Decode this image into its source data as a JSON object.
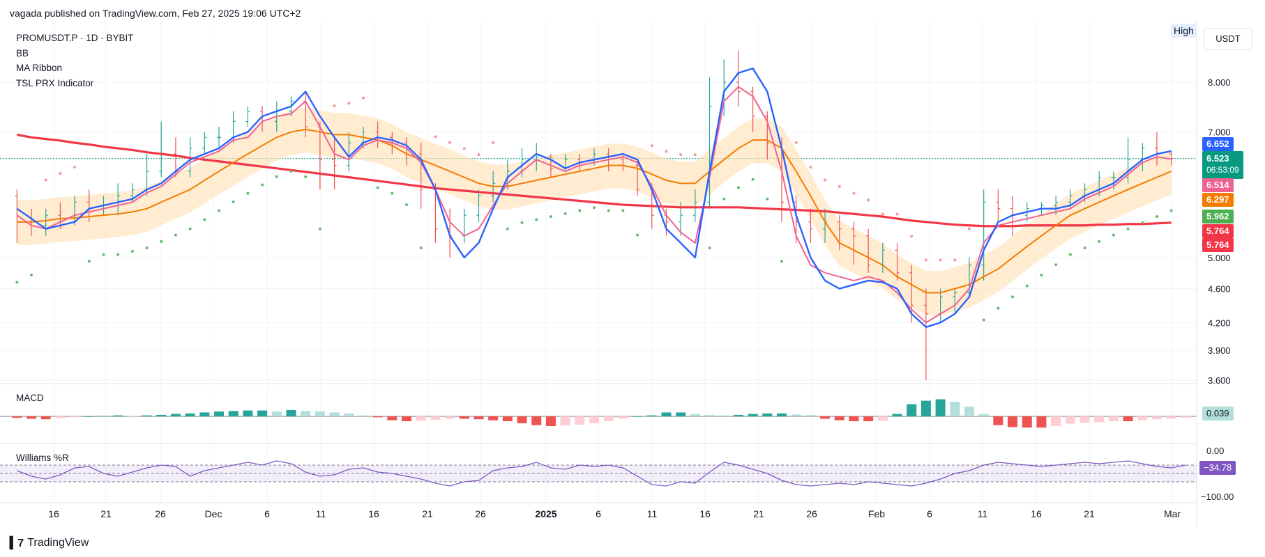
{
  "header": {
    "published": "vagada published on TradingView.com, Feb 27, 2025 19:06 UTC+2"
  },
  "legend": {
    "symbol": "PROMUSDT.P · 1D · BYBIT",
    "indicators": [
      "BB",
      "MA Ribbon",
      "TSL PRX Indicator"
    ]
  },
  "toolbar": {
    "currency": "USDT",
    "high_label": "High"
  },
  "price_tags": [
    {
      "value": "6.652",
      "color": "#2962ff"
    },
    {
      "value": "6.523",
      "sub": "06:53:09",
      "color": "#089981"
    },
    {
      "value": "6.514",
      "color": "#f06292"
    },
    {
      "value": "6.297",
      "color": "#f57c00"
    },
    {
      "value": "5.962",
      "color": "#4caf50"
    },
    {
      "value": "5.764",
      "color": "#f23645"
    },
    {
      "value": "5.764",
      "color": "#f23645"
    }
  ],
  "macd": {
    "label": "MACD",
    "value": "0.039"
  },
  "williams": {
    "label": "Williams %R",
    "value": "−34.78",
    "axis_top": "0.00",
    "axis_bottom": "−100.00"
  },
  "footer": {
    "brand": "TradingView"
  },
  "chart_data": {
    "type": "line",
    "y_ticks": [
      "8.000",
      "7.000",
      "5.000",
      "4.600",
      "4.200",
      "3.900",
      "3.600"
    ],
    "x_ticks": [
      "16",
      "21",
      "26",
      "Dec",
      "6",
      "11",
      "16",
      "21",
      "26",
      "2025",
      "6",
      "11",
      "16",
      "21",
      "26",
      "Feb",
      "6",
      "11",
      "16",
      "21",
      "Mar"
    ],
    "ylim": [
      3.6,
      8.6
    ],
    "series": [
      {
        "name": "MA fast (blue)",
        "color": "#2962ff",
        "values": [
          5.7,
          5.55,
          5.4,
          5.45,
          5.5,
          5.7,
          5.75,
          5.8,
          5.85,
          6.0,
          6.1,
          6.3,
          6.5,
          6.6,
          6.7,
          6.9,
          7.0,
          7.3,
          7.4,
          7.5,
          7.8,
          7.3,
          6.9,
          6.55,
          6.8,
          6.9,
          6.85,
          6.75,
          6.5,
          6.0,
          5.3,
          5.0,
          5.2,
          5.7,
          6.2,
          6.4,
          6.6,
          6.5,
          6.35,
          6.45,
          6.5,
          6.55,
          6.6,
          6.5,
          6.0,
          5.4,
          5.2,
          5.0,
          6.3,
          7.8,
          8.2,
          8.3,
          7.8,
          6.7,
          5.6,
          5.0,
          4.7,
          4.6,
          4.65,
          4.7,
          4.68,
          4.6,
          4.3,
          4.15,
          4.2,
          4.3,
          4.5,
          5.1,
          5.5,
          5.6,
          5.65,
          5.7,
          5.7,
          5.75,
          5.9,
          6.0,
          6.1,
          6.3,
          6.5,
          6.6,
          6.65
        ]
      },
      {
        "name": "MA mid (pink)",
        "color": "#f06292",
        "values": [
          5.6,
          5.45,
          5.4,
          5.5,
          5.6,
          5.65,
          5.7,
          5.75,
          5.8,
          5.95,
          6.05,
          6.25,
          6.45,
          6.55,
          6.65,
          6.85,
          6.9,
          7.2,
          7.3,
          7.35,
          7.6,
          7.1,
          6.6,
          6.5,
          6.75,
          6.85,
          6.8,
          6.7,
          6.45,
          6.0,
          5.5,
          5.3,
          5.4,
          5.75,
          6.1,
          6.3,
          6.5,
          6.4,
          6.3,
          6.4,
          6.45,
          6.5,
          6.55,
          6.45,
          6.05,
          5.6,
          5.35,
          5.2,
          6.2,
          7.6,
          7.9,
          7.7,
          7.2,
          6.3,
          5.3,
          4.9,
          4.8,
          4.75,
          4.7,
          4.75,
          4.7,
          4.55,
          4.35,
          4.2,
          4.3,
          4.4,
          4.6,
          5.2,
          5.45,
          5.5,
          5.55,
          5.6,
          5.65,
          5.7,
          5.85,
          5.95,
          6.05,
          6.25,
          6.45,
          6.55,
          6.51
        ]
      },
      {
        "name": "MA slow (orange)",
        "color": "#f57c00",
        "values": [
          5.5,
          5.5,
          5.52,
          5.55,
          5.56,
          5.58,
          5.6,
          5.62,
          5.65,
          5.7,
          5.8,
          5.9,
          6.0,
          6.15,
          6.3,
          6.45,
          6.6,
          6.75,
          6.9,
          7.0,
          7.05,
          7.0,
          6.95,
          6.95,
          6.9,
          6.85,
          6.75,
          6.6,
          6.5,
          6.4,
          6.3,
          6.2,
          6.1,
          6.05,
          6.05,
          6.1,
          6.15,
          6.2,
          6.25,
          6.3,
          6.35,
          6.4,
          6.4,
          6.35,
          6.25,
          6.15,
          6.1,
          6.1,
          6.3,
          6.5,
          6.7,
          6.85,
          6.85,
          6.7,
          6.3,
          5.9,
          5.5,
          5.2,
          5.1,
          5.0,
          4.9,
          4.75,
          4.65,
          4.55,
          4.55,
          4.6,
          4.65,
          4.75,
          4.85,
          5.0,
          5.15,
          5.3,
          5.45,
          5.6,
          5.7,
          5.8,
          5.9,
          6.0,
          6.1,
          6.2,
          6.3
        ]
      },
      {
        "name": "MA long (red)",
        "color": "#f23645",
        "values": [
          6.95,
          6.9,
          6.87,
          6.84,
          6.8,
          6.77,
          6.73,
          6.7,
          6.67,
          6.63,
          6.6,
          6.57,
          6.53,
          6.5,
          6.47,
          6.44,
          6.41,
          6.38,
          6.35,
          6.32,
          6.29,
          6.26,
          6.23,
          6.2,
          6.17,
          6.14,
          6.11,
          6.08,
          6.05,
          6.02,
          6.0,
          5.98,
          5.96,
          5.94,
          5.92,
          5.9,
          5.88,
          5.86,
          5.84,
          5.82,
          5.8,
          5.78,
          5.76,
          5.75,
          5.74,
          5.73,
          5.72,
          5.72,
          5.72,
          5.72,
          5.72,
          5.71,
          5.7,
          5.69,
          5.68,
          5.67,
          5.66,
          5.64,
          5.62,
          5.6,
          5.58,
          5.55,
          5.52,
          5.5,
          5.48,
          5.46,
          5.45,
          5.44,
          5.44,
          5.44,
          5.45,
          5.45,
          5.45,
          5.45,
          5.45,
          5.46,
          5.46,
          5.47,
          5.47,
          5.48,
          5.49
        ]
      }
    ],
    "candles": [
      [
        5.9,
        5.5,
        6.0,
        5.2
      ],
      [
        5.5,
        5.45,
        5.7,
        5.3
      ],
      [
        5.45,
        5.6,
        5.7,
        5.3
      ],
      [
        5.6,
        5.5,
        5.8,
        5.4
      ],
      [
        5.5,
        5.8,
        5.9,
        5.45
      ],
      [
        5.8,
        5.7,
        6.0,
        5.5
      ],
      [
        5.7,
        5.75,
        5.9,
        5.6
      ],
      [
        5.75,
        5.9,
        6.1,
        5.6
      ],
      [
        5.9,
        6.0,
        6.1,
        5.8
      ],
      [
        6.0,
        6.3,
        6.6,
        5.9
      ],
      [
        6.3,
        6.6,
        7.2,
        6.2
      ],
      [
        6.6,
        6.3,
        6.9,
        6.2
      ],
      [
        6.3,
        6.7,
        6.9,
        6.2
      ],
      [
        6.7,
        6.9,
        7.0,
        6.6
      ],
      [
        6.9,
        6.9,
        7.1,
        6.7
      ],
      [
        6.9,
        7.2,
        7.4,
        6.8
      ],
      [
        7.2,
        7.4,
        7.5,
        7.1
      ],
      [
        7.4,
        7.2,
        7.5,
        7.0
      ],
      [
        7.2,
        7.4,
        7.6,
        7.0
      ],
      [
        7.4,
        7.6,
        7.7,
        7.3
      ],
      [
        7.6,
        7.1,
        7.8,
        6.9
      ],
      [
        7.1,
        6.5,
        7.2,
        6.0
      ],
      [
        6.5,
        6.4,
        6.9,
        6.0
      ],
      [
        6.4,
        6.8,
        7.0,
        6.3
      ],
      [
        6.8,
        7.0,
        7.1,
        6.7
      ],
      [
        7.0,
        6.9,
        7.2,
        6.7
      ],
      [
        6.9,
        6.8,
        7.0,
        6.6
      ],
      [
        6.8,
        6.6,
        6.9,
        6.4
      ],
      [
        6.6,
        6.0,
        6.8,
        5.7
      ],
      [
        6.0,
        5.4,
        6.1,
        5.2
      ],
      [
        5.4,
        5.3,
        5.7,
        5.0
      ],
      [
        5.3,
        5.6,
        5.7,
        5.2
      ],
      [
        5.6,
        5.9,
        6.0,
        5.5
      ],
      [
        5.9,
        6.1,
        6.3,
        5.8
      ],
      [
        6.1,
        6.3,
        6.5,
        6.0
      ],
      [
        6.3,
        6.5,
        6.7,
        6.2
      ],
      [
        6.5,
        6.55,
        6.8,
        6.3
      ],
      [
        6.55,
        6.35,
        6.6,
        6.2
      ],
      [
        6.35,
        6.5,
        6.6,
        6.3
      ],
      [
        6.5,
        6.45,
        6.6,
        6.3
      ],
      [
        6.45,
        6.6,
        6.7,
        6.4
      ],
      [
        6.6,
        6.5,
        6.7,
        6.3
      ],
      [
        6.5,
        6.4,
        6.6,
        6.3
      ],
      [
        6.4,
        6.0,
        6.5,
        5.9
      ],
      [
        6.0,
        5.6,
        6.1,
        5.4
      ],
      [
        5.6,
        5.5,
        5.7,
        5.3
      ],
      [
        5.5,
        5.6,
        5.8,
        5.3
      ],
      [
        5.6,
        5.8,
        6.0,
        5.5
      ],
      [
        5.8,
        7.5,
        8.1,
        5.7
      ],
      [
        7.5,
        8.0,
        8.5,
        7.3
      ],
      [
        8.0,
        7.8,
        8.7,
        7.5
      ],
      [
        7.8,
        7.3,
        7.9,
        7.0
      ],
      [
        7.3,
        6.8,
        7.4,
        6.5
      ],
      [
        6.8,
        5.8,
        6.9,
        5.5
      ],
      [
        5.8,
        5.5,
        5.9,
        5.2
      ],
      [
        5.5,
        5.4,
        5.7,
        5.2
      ],
      [
        5.4,
        5.5,
        5.7,
        5.2
      ],
      [
        5.5,
        5.4,
        5.6,
        5.1
      ],
      [
        5.4,
        5.3,
        5.5,
        4.9
      ],
      [
        5.3,
        4.9,
        5.4,
        4.8
      ],
      [
        4.9,
        5.1,
        5.2,
        4.8
      ],
      [
        5.1,
        4.8,
        5.2,
        4.7
      ],
      [
        4.8,
        4.4,
        4.9,
        4.2
      ],
      [
        4.4,
        4.3,
        4.6,
        3.6
      ],
      [
        4.3,
        4.5,
        4.6,
        4.2
      ],
      [
        4.5,
        4.55,
        4.6,
        4.3
      ],
      [
        4.55,
        4.9,
        5.0,
        4.5
      ],
      [
        4.9,
        5.8,
        6.0,
        4.7
      ],
      [
        5.8,
        5.7,
        6.0,
        5.5
      ],
      [
        5.7,
        5.6,
        5.9,
        5.3
      ],
      [
        5.6,
        5.7,
        5.8,
        5.5
      ],
      [
        5.7,
        5.75,
        5.8,
        5.6
      ],
      [
        5.75,
        5.8,
        5.9,
        5.6
      ],
      [
        5.8,
        5.9,
        6.0,
        5.7
      ],
      [
        5.9,
        6.0,
        6.1,
        5.8
      ],
      [
        6.0,
        6.2,
        6.3,
        5.9
      ],
      [
        6.2,
        6.2,
        6.3,
        6.0
      ],
      [
        6.2,
        6.5,
        6.9,
        6.1
      ],
      [
        6.5,
        6.7,
        6.8,
        6.3
      ],
      [
        6.7,
        6.6,
        7.0,
        6.4
      ],
      [
        6.6,
        6.52,
        6.65,
        6.4
      ]
    ],
    "macd_histogram": [
      -0.03,
      -0.05,
      -0.06,
      -0.04,
      -0.02,
      0.0,
      0.01,
      0.02,
      0.01,
      0.02,
      0.03,
      0.05,
      0.06,
      0.08,
      0.1,
      0.11,
      0.12,
      0.12,
      0.1,
      0.13,
      0.11,
      0.1,
      0.08,
      0.06,
      0.02,
      -0.02,
      -0.08,
      -0.1,
      -0.09,
      -0.07,
      -0.05,
      -0.05,
      -0.06,
      -0.08,
      -0.1,
      -0.14,
      -0.18,
      -0.2,
      -0.19,
      -0.17,
      -0.14,
      -0.1,
      -0.05,
      0.0,
      0.02,
      0.08,
      0.08,
      0.05,
      0.03,
      0.02,
      0.03,
      0.05,
      0.06,
      0.06,
      0.04,
      0.03,
      -0.05,
      -0.08,
      -0.1,
      -0.1,
      -0.09,
      0.05,
      0.25,
      0.32,
      0.35,
      0.3,
      0.2,
      0.05,
      -0.18,
      -0.22,
      -0.23,
      -0.23,
      -0.2,
      -0.15,
      -0.13,
      -0.12,
      -0.1,
      -0.1,
      -0.08,
      -0.06,
      -0.05,
      -0.03
    ],
    "williams_r": [
      -40,
      -60,
      -70,
      -55,
      -30,
      -25,
      -50,
      -60,
      -45,
      -30,
      -20,
      -25,
      -60,
      -40,
      -30,
      -20,
      -10,
      -20,
      -5,
      -15,
      -45,
      -60,
      -55,
      -35,
      -30,
      -45,
      -50,
      -60,
      -70,
      -85,
      -95,
      -80,
      -75,
      -40,
      -30,
      -25,
      -10,
      -30,
      -35,
      -20,
      -25,
      -20,
      -30,
      -60,
      -90,
      -95,
      -80,
      -85,
      -45,
      -10,
      -20,
      -35,
      -50,
      -75,
      -90,
      -95,
      -90,
      -85,
      -90,
      -80,
      -85,
      -90,
      -95,
      -85,
      -70,
      -50,
      -40,
      -20,
      -10,
      -15,
      -20,
      -25,
      -20,
      -15,
      -10,
      -15,
      -10,
      -5,
      -15,
      -25,
      -30,
      -20
    ]
  }
}
